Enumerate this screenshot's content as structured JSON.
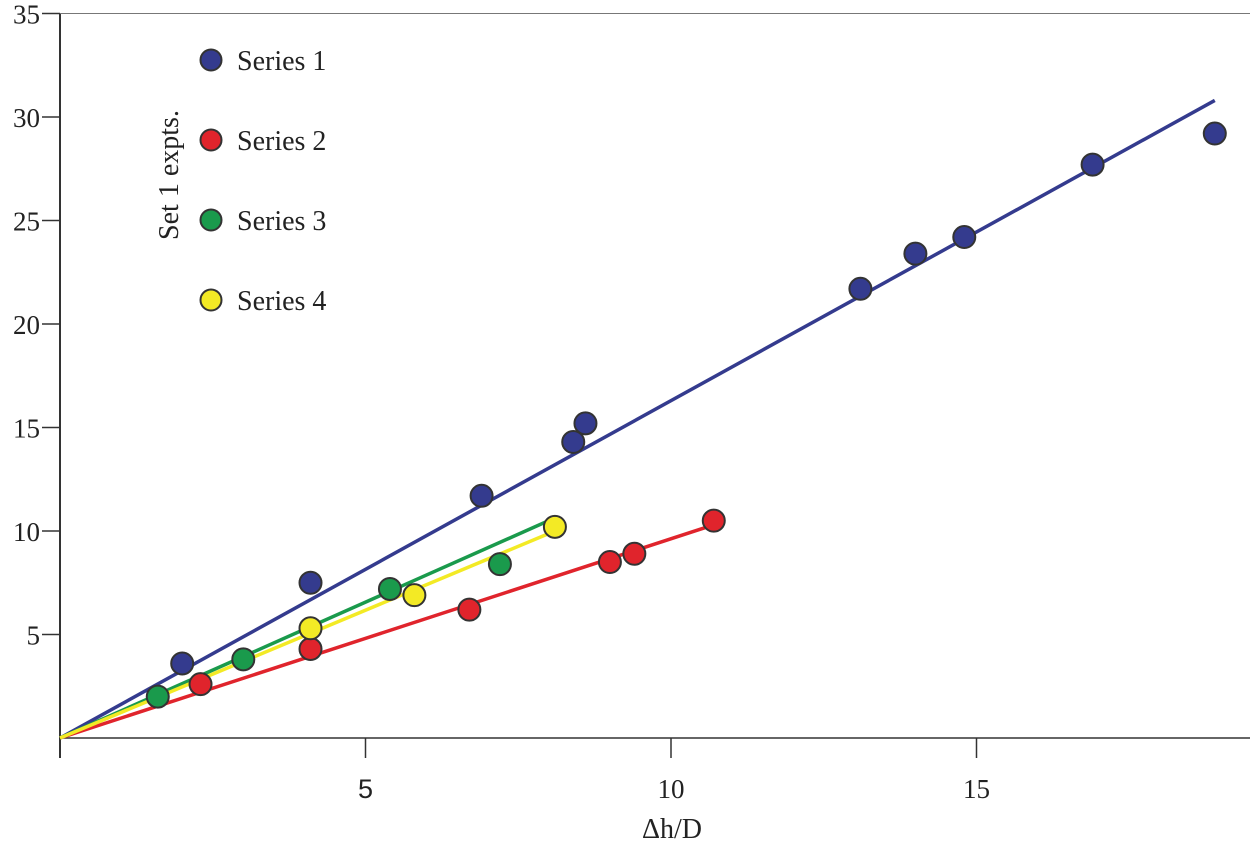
{
  "chart_data": {
    "type": "scatter",
    "xlabel": "Δh/D",
    "ylabel": "Set 1 expts.",
    "xlim": [
      0,
      19.5
    ],
    "ylim": [
      0,
      35
    ],
    "x_ticks": [
      5,
      10,
      15
    ],
    "x_tick_labels": [
      "5",
      "10",
      "15"
    ],
    "y_ticks": [
      5,
      10,
      15,
      20,
      25,
      30,
      35
    ],
    "y_tick_labels": [
      "5",
      "10",
      "15",
      "20",
      "25",
      "30",
      "35"
    ],
    "grid": false,
    "legend_position": "top-left",
    "series": [
      {
        "name": "Series 1",
        "color": "#343b8e",
        "points": [
          [
            2.0,
            3.6
          ],
          [
            4.1,
            7.5
          ],
          [
            6.9,
            11.7
          ],
          [
            8.4,
            14.3
          ],
          [
            8.6,
            15.2
          ],
          [
            13.1,
            21.7
          ],
          [
            14.0,
            23.4
          ],
          [
            14.8,
            24.2
          ],
          [
            16.9,
            27.7
          ],
          [
            18.9,
            29.2
          ]
        ],
        "fit_line": [
          [
            0,
            0
          ],
          [
            18.9,
            30.8
          ]
        ]
      },
      {
        "name": "Series 2",
        "color": "#e0242c",
        "points": [
          [
            2.3,
            2.6
          ],
          [
            4.1,
            4.3
          ],
          [
            6.7,
            6.2
          ],
          [
            9.0,
            8.5
          ],
          [
            9.4,
            8.9
          ],
          [
            10.7,
            10.5
          ]
        ],
        "fit_line": [
          [
            0,
            0
          ],
          [
            10.7,
            10.3
          ]
        ]
      },
      {
        "name": "Series 3",
        "color": "#1a9a4c",
        "points": [
          [
            1.6,
            2.0
          ],
          [
            3.0,
            3.8
          ],
          [
            5.4,
            7.2
          ],
          [
            7.2,
            8.4
          ]
        ],
        "fit_line": [
          [
            0,
            0
          ],
          [
            8.0,
            10.5
          ]
        ]
      },
      {
        "name": "Series 4",
        "color": "#f3ea25",
        "points": [
          [
            4.1,
            5.3
          ],
          [
            5.8,
            6.9
          ],
          [
            8.1,
            10.2
          ]
        ],
        "fit_line": [
          [
            0,
            0
          ],
          [
            8.1,
            10.0
          ]
        ]
      }
    ]
  }
}
